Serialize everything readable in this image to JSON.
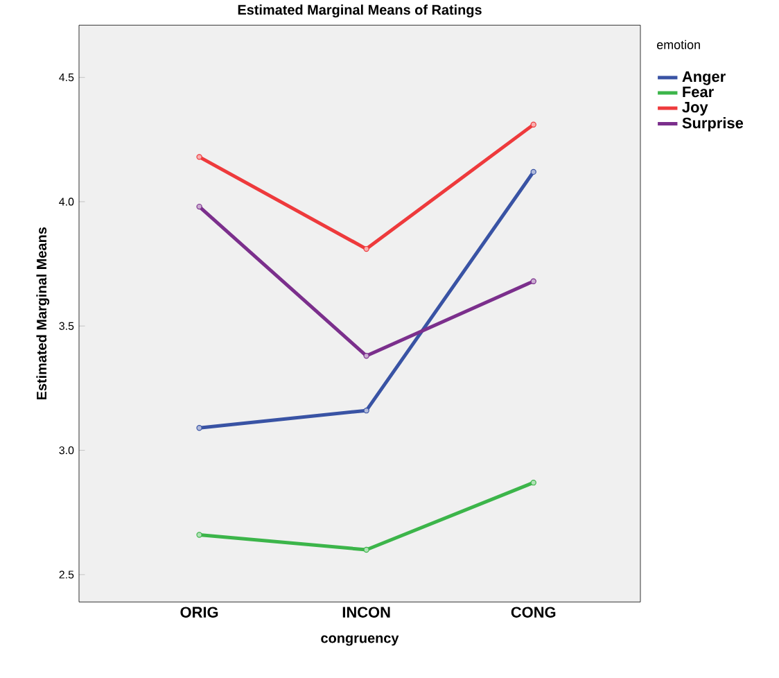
{
  "chart_data": {
    "type": "line",
    "title": "Estimated Marginal Means of Ratings",
    "xlabel": "congruency",
    "ylabel": "Estimated Marginal Means",
    "legend_title": "emotion",
    "categories": [
      "ORIG",
      "INCON",
      "CONG"
    ],
    "series": [
      {
        "name": "Anger",
        "color": "#3953a4",
        "values": [
          3.09,
          3.16,
          4.12
        ]
      },
      {
        "name": "Fear",
        "color": "#3cb54a",
        "values": [
          2.66,
          2.6,
          2.87
        ]
      },
      {
        "name": "Joy",
        "color": "#ee3a3c",
        "values": [
          4.18,
          3.81,
          4.31
        ]
      },
      {
        "name": "Surprise",
        "color": "#7b2f8c",
        "values": [
          3.98,
          3.38,
          3.68
        ]
      }
    ],
    "ylim": [
      2.39,
      4.71
    ],
    "yticks": [
      2.5,
      {
        "value": 3,
        "label": "3.0"
      },
      3.5,
      {
        "value": 4,
        "label": "4.0"
      },
      4.5
    ],
    "grid": false,
    "legend": "right",
    "marker": "circle",
    "line_style": "solid"
  }
}
